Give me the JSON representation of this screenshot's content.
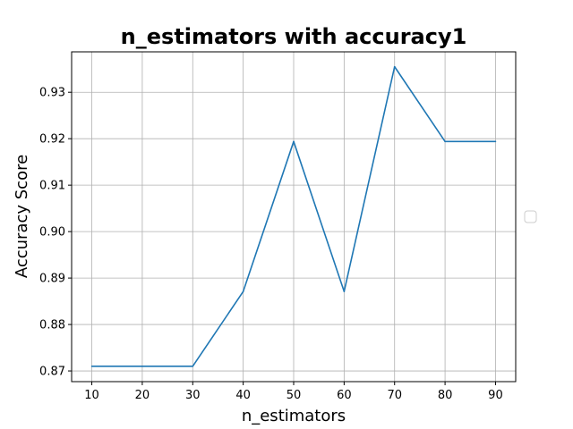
{
  "chart_data": {
    "type": "line",
    "title": "n_estimators with accuracy1",
    "xlabel": "n_estimators",
    "ylabel": "Accuracy Score",
    "x": [
      10,
      20,
      30,
      40,
      50,
      60,
      70,
      80,
      90
    ],
    "series": [
      {
        "values": [
          0.871,
          0.871,
          0.871,
          0.8871,
          0.9194,
          0.8871,
          0.9355,
          0.9194,
          0.9194
        ]
      }
    ],
    "xticks": [
      10,
      20,
      30,
      40,
      50,
      60,
      70,
      80,
      90
    ],
    "xtick_labels": [
      "10",
      "20",
      "30",
      "40",
      "50",
      "60",
      "70",
      "80",
      "90"
    ],
    "yticks": [
      0.87,
      0.88,
      0.89,
      0.9,
      0.91,
      0.92,
      0.93
    ],
    "ytick_labels": [
      "0.87",
      "0.88",
      "0.89",
      "0.90",
      "0.91",
      "0.92",
      "0.93"
    ],
    "xlim": [
      6,
      94
    ],
    "ylim": [
      0.8677,
      0.9387
    ],
    "grid": true,
    "legend": "center-right (empty)",
    "line_color": "#1f77b4"
  }
}
